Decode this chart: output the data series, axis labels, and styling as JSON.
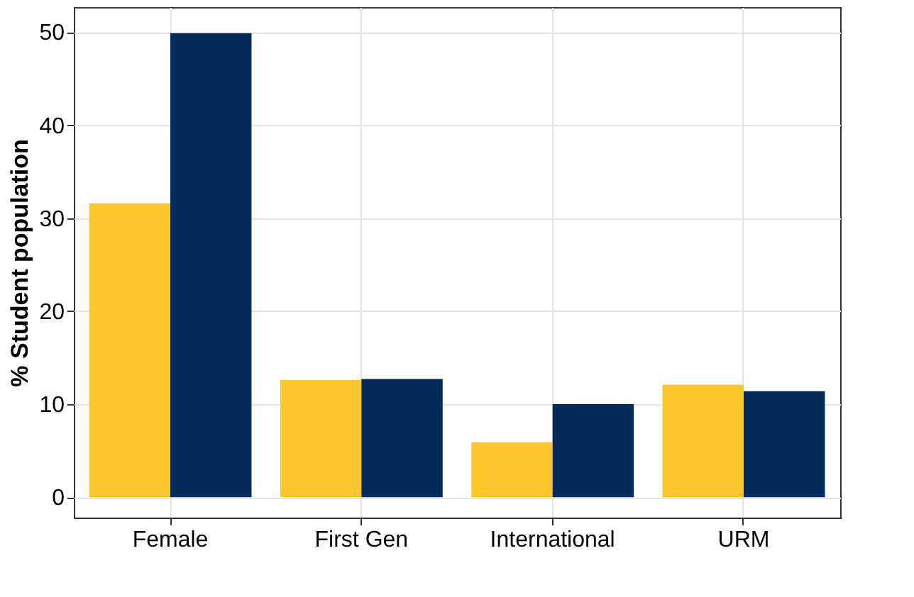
{
  "chart_data": {
    "type": "bar",
    "ylabel": "% Student population",
    "categories": [
      "Female",
      "First Gen",
      "International",
      "URM"
    ],
    "series": [
      {
        "color": "#fcc62d",
        "values": [
          31.6,
          12.6,
          5.9,
          12.1
        ]
      },
      {
        "color": "#062a5a",
        "values": [
          49.9,
          12.7,
          10.0,
          11.4
        ]
      }
    ],
    "ylim": [
      -2.2,
      52.7
    ],
    "yticks": [
      0,
      10,
      20,
      30,
      40,
      50
    ],
    "grid": true,
    "legend": false
  }
}
